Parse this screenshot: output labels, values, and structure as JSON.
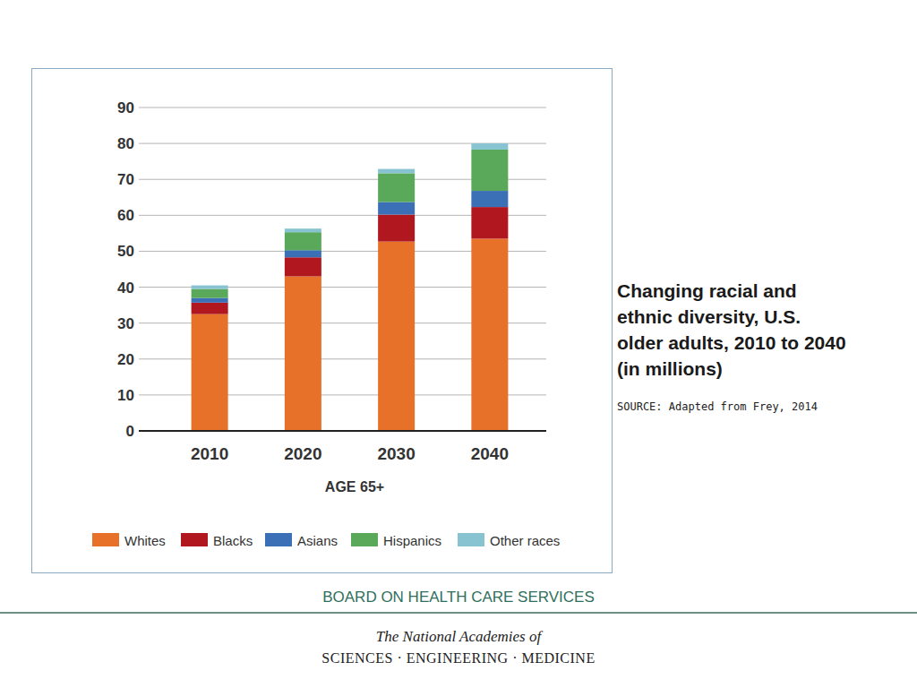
{
  "chart_data": {
    "type": "bar",
    "stacked": true,
    "grid": true,
    "legend": "bottom",
    "title": "Changing racial and ethnic diversity, U.S. older adults, 2010 to 2040 (in millions)",
    "subtitle": "SOURCE: Adapted from Frey, 2014",
    "x_label": "AGE 65+",
    "categories": [
      "2010",
      "2020",
      "2030",
      "2040"
    ],
    "series": [
      {
        "name": "Whites",
        "color": "#e8712a",
        "values": [
          32.5,
          43,
          52.7,
          53.5
        ]
      },
      {
        "name": "Blacks",
        "color": "#b0171f",
        "values": [
          3.2,
          5.3,
          7.5,
          8.8
        ]
      },
      {
        "name": "Asians",
        "color": "#3b6fb6",
        "values": [
          1.3,
          2,
          3.5,
          4.5
        ]
      },
      {
        "name": "Hispanics",
        "color": "#5aa95a",
        "values": [
          2.5,
          5,
          8,
          11.5
        ]
      },
      {
        "name": "Other races",
        "color": "#88c3d1",
        "values": [
          1,
          1,
          1.2,
          1.7
        ]
      }
    ],
    "ylim": [
      0,
      90
    ],
    "yticks": [
      0,
      10,
      20,
      30,
      40,
      50,
      60,
      70,
      80,
      90
    ]
  },
  "footer": {
    "board": "BOARD ON HEALTH CARE SERVICES",
    "org_line1": "The National Academies of",
    "org_line2": "SCIENCES · ENGINEERING · MEDICINE"
  }
}
